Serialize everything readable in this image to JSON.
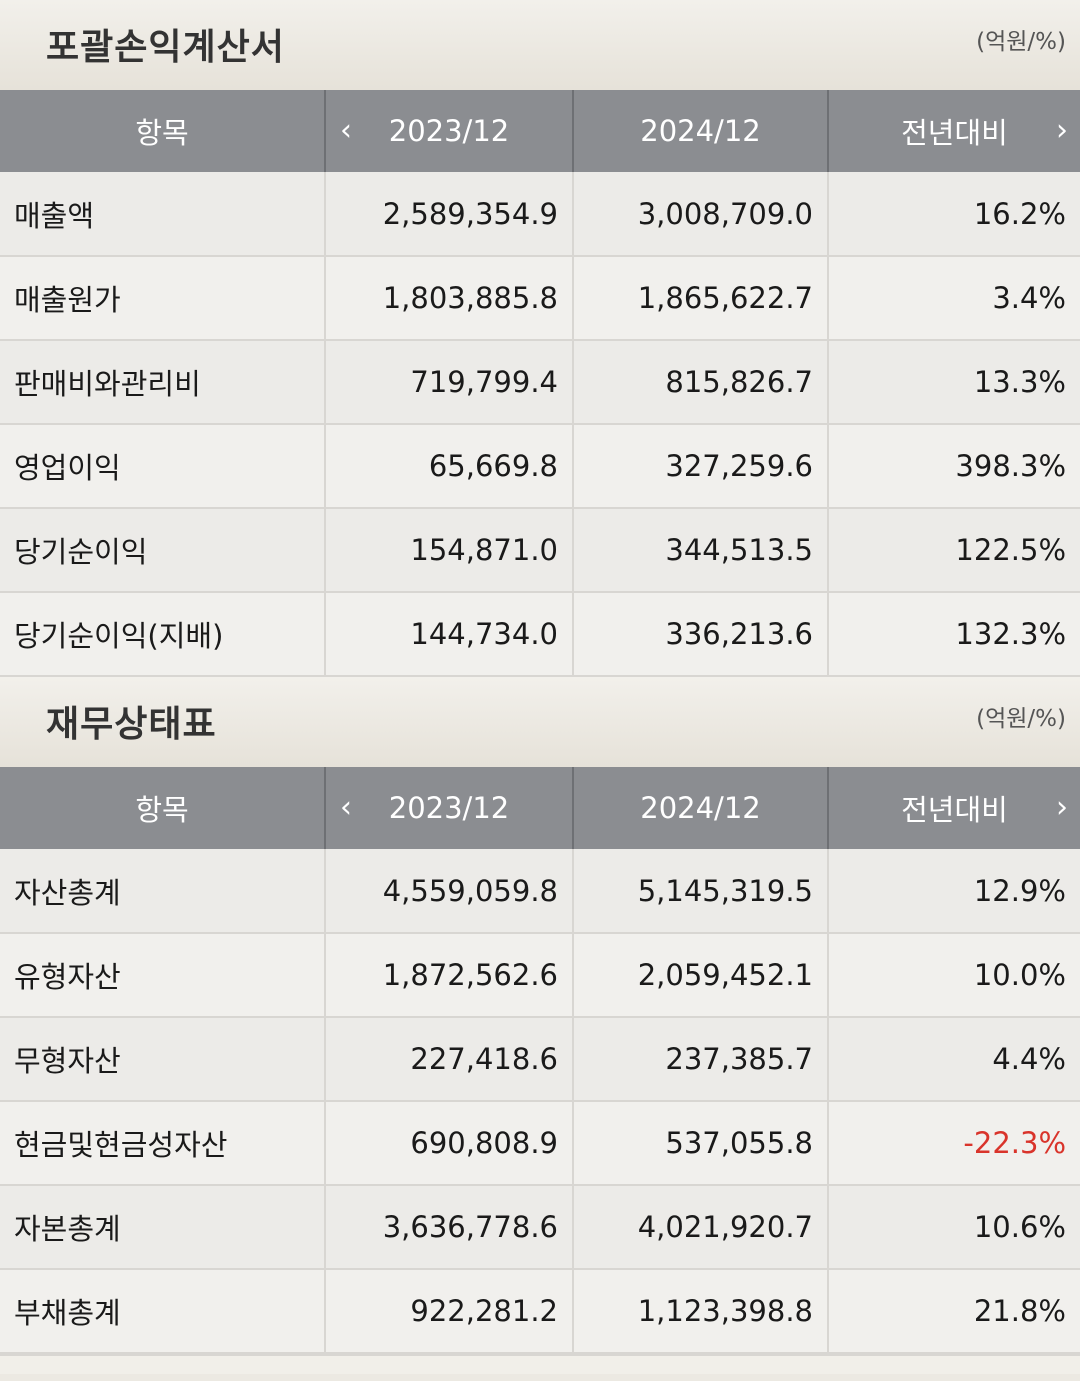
{
  "income_statement": {
    "title": "포괄손익계산서",
    "unit": "(억원/%)",
    "headers": [
      "항목",
      "2023/12",
      "2024/12",
      "전년대비"
    ],
    "rows": [
      {
        "item": "매출액",
        "y2023": "2,589,354.9",
        "y2024": "3,008,709.0",
        "yoy": "16.2%"
      },
      {
        "item": "매출원가",
        "y2023": "1,803,885.8",
        "y2024": "1,865,622.7",
        "yoy": "3.4%"
      },
      {
        "item": "판매비와관리비",
        "y2023": "719,799.4",
        "y2024": "815,826.7",
        "yoy": "13.3%"
      },
      {
        "item": "영업이익",
        "y2023": "65,669.8",
        "y2024": "327,259.6",
        "yoy": "398.3%"
      },
      {
        "item": "당기순이익",
        "y2023": "154,871.0",
        "y2024": "344,513.5",
        "yoy": "122.5%"
      },
      {
        "item": "당기순이익(지배)",
        "y2023": "144,734.0",
        "y2024": "336,213.6",
        "yoy": "132.3%"
      }
    ]
  },
  "balance_sheet": {
    "title": "재무상태표",
    "unit": "(억원/%)",
    "headers": [
      "항목",
      "2023/12",
      "2024/12",
      "전년대비"
    ],
    "rows": [
      {
        "item": "자산총계",
        "y2023": "4,559,059.8",
        "y2024": "5,145,319.5",
        "yoy": "12.9%"
      },
      {
        "item": "유형자산",
        "y2023": "1,872,562.6",
        "y2024": "2,059,452.1",
        "yoy": "10.0%"
      },
      {
        "item": "무형자산",
        "y2023": "227,418.6",
        "y2024": "237,385.7",
        "yoy": "4.4%"
      },
      {
        "item": "현금및현금성자산",
        "y2023": "690,808.9",
        "y2024": "537,055.8",
        "yoy": "-22.3%"
      },
      {
        "item": "자본총계",
        "y2023": "3,636,778.6",
        "y2024": "4,021,920.7",
        "yoy": "10.6%"
      },
      {
        "item": "부채총계",
        "y2023": "922,281.2",
        "y2024": "1,123,398.8",
        "yoy": "21.8%"
      }
    ]
  },
  "icons": {
    "prev": "chevron-left-icon",
    "next": "chevron-right-icon"
  },
  "colors": {
    "header_bg": "#8b8d91",
    "negative": "#d9342b"
  }
}
